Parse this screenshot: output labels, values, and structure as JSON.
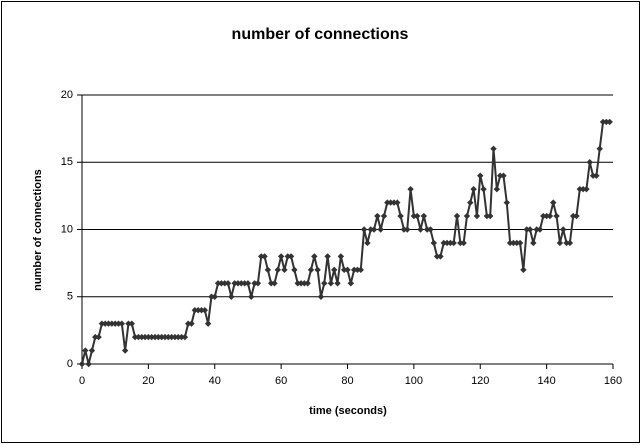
{
  "chart_data": {
    "type": "line",
    "title": "number of connections",
    "x_label": "time (seconds)",
    "y_label": "number of connections",
    "x": [
      0,
      1,
      2,
      3,
      4,
      5,
      6,
      7,
      8,
      9,
      10,
      11,
      12,
      13,
      14,
      15,
      16,
      17,
      18,
      19,
      20,
      21,
      22,
      23,
      24,
      25,
      26,
      27,
      28,
      29,
      30,
      31,
      32,
      33,
      34,
      35,
      36,
      37,
      38,
      39,
      40,
      41,
      42,
      43,
      44,
      45,
      46,
      47,
      48,
      49,
      50,
      51,
      52,
      53,
      54,
      55,
      56,
      57,
      58,
      59,
      60,
      61,
      62,
      63,
      64,
      65,
      66,
      67,
      68,
      69,
      70,
      71,
      72,
      73,
      74,
      75,
      76,
      77,
      78,
      79,
      80,
      81,
      82,
      83,
      84,
      85,
      86,
      87,
      88,
      89,
      90,
      91,
      92,
      93,
      94,
      95,
      96,
      97,
      98,
      99,
      100,
      101,
      102,
      103,
      104,
      105,
      106,
      107,
      108,
      109,
      110,
      111,
      112,
      113,
      114,
      115,
      116,
      117,
      118,
      119,
      120,
      121,
      122,
      123,
      124,
      125,
      126,
      127,
      128,
      129,
      130,
      131,
      132,
      133,
      134,
      135,
      136,
      137,
      138,
      139,
      140,
      141,
      142,
      143,
      144,
      145,
      146,
      147,
      148,
      149,
      150,
      151,
      152,
      153,
      154,
      155,
      156,
      157,
      158,
      159
    ],
    "series": [
      {
        "name": "number of connections",
        "color": "#333333",
        "values": [
          0,
          1,
          0,
          1,
          2,
          2,
          3,
          3,
          3,
          3,
          3,
          3,
          3,
          1,
          3,
          3,
          2,
          2,
          2,
          2,
          2,
          2,
          2,
          2,
          2,
          2,
          2,
          2,
          2,
          2,
          2,
          2,
          3,
          3,
          4,
          4,
          4,
          4,
          3,
          5,
          5,
          6,
          6,
          6,
          6,
          5,
          6,
          6,
          6,
          6,
          6,
          5,
          6,
          6,
          8,
          8,
          7,
          6,
          6,
          7,
          8,
          7,
          8,
          8,
          7,
          6,
          6,
          6,
          6,
          7,
          8,
          7,
          5,
          6,
          8,
          6,
          7,
          6,
          8,
          7,
          7,
          6,
          7,
          7,
          7,
          10,
          9,
          10,
          10,
          11,
          10,
          11,
          12,
          12,
          12,
          12,
          11,
          10,
          10,
          13,
          11,
          11,
          10,
          11,
          10,
          10,
          9,
          8,
          8,
          9,
          9,
          9,
          9,
          11,
          9,
          9,
          11,
          12,
          13,
          11,
          14,
          13,
          11,
          11,
          16,
          13,
          14,
          14,
          12,
          9,
          9,
          9,
          9,
          7,
          10,
          10,
          9,
          10,
          10,
          11,
          11,
          11,
          12,
          11,
          9,
          10,
          9,
          9,
          11,
          11,
          13,
          13,
          13,
          15,
          14,
          14,
          16,
          18,
          18,
          18
        ]
      }
    ],
    "xlim": [
      0,
      160
    ],
    "xticks": [
      0,
      20,
      40,
      60,
      80,
      100,
      120,
      140,
      160
    ],
    "ylim": [
      0,
      20
    ],
    "yticks": [
      0,
      5,
      10,
      15,
      20
    ],
    "grid": true
  }
}
